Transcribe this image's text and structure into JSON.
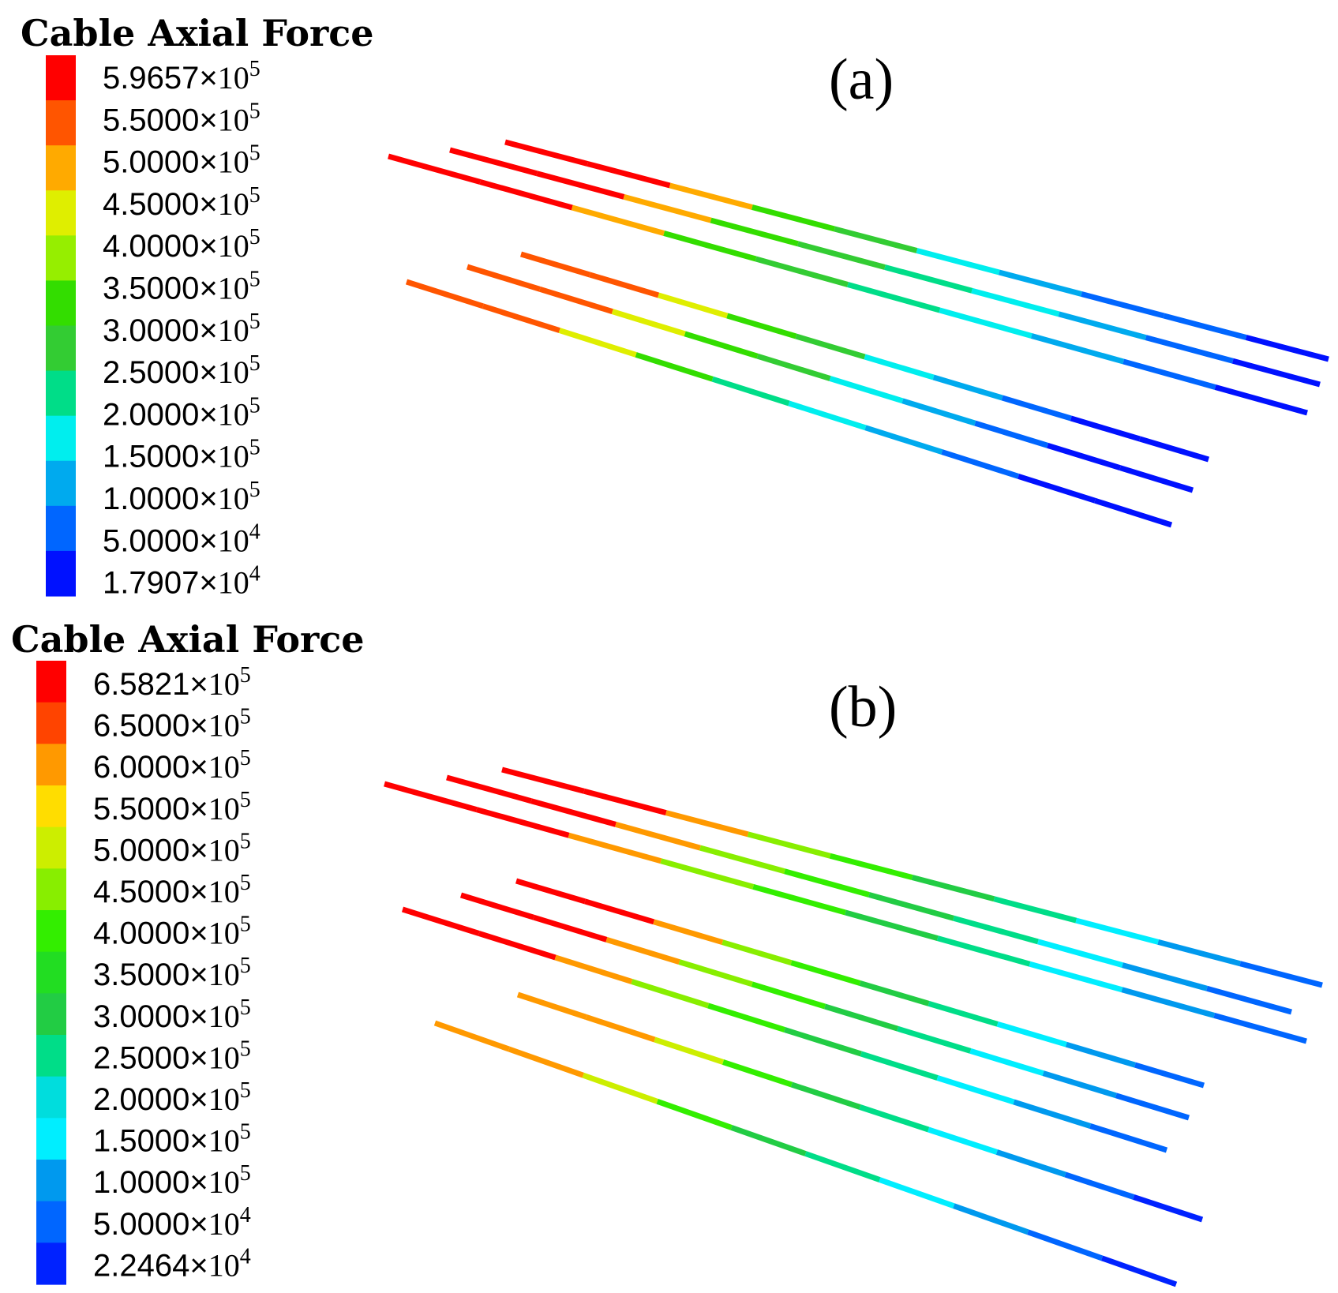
{
  "panels": [
    {
      "id": "a",
      "label": "(a)",
      "legend": {
        "title": "Cable Axial Force",
        "colors": [
          "#ff0000",
          "#ff5500",
          "#ffaa00",
          "#dfee00",
          "#96ee00",
          "#33dd00",
          "#33cc33",
          "#00dd88",
          "#00eeee",
          "#00aaee",
          "#0066ff",
          "#0011ff"
        ],
        "ticks": [
          {
            "mantissa": "5.9657",
            "times": "×",
            "base": "10",
            "exp": "5"
          },
          {
            "mantissa": "5.5000",
            "times": "×",
            "base": "10",
            "exp": "5"
          },
          {
            "mantissa": "5.0000",
            "times": "×",
            "base": "10",
            "exp": "5"
          },
          {
            "mantissa": "4.5000",
            "times": "×",
            "base": "10",
            "exp": "5"
          },
          {
            "mantissa": "4.0000",
            "times": "×",
            "base": "10",
            "exp": "5"
          },
          {
            "mantissa": "3.5000",
            "times": "×",
            "base": "10",
            "exp": "5"
          },
          {
            "mantissa": "3.0000",
            "times": "×",
            "base": "10",
            "exp": "5"
          },
          {
            "mantissa": "2.5000",
            "times": "×",
            "base": "10",
            "exp": "5"
          },
          {
            "mantissa": "2.0000",
            "times": "×",
            "base": "10",
            "exp": "5"
          },
          {
            "mantissa": "1.5000",
            "times": "×",
            "base": "10",
            "exp": "5"
          },
          {
            "mantissa": "1.0000",
            "times": "×",
            "base": "10",
            "exp": "5"
          },
          {
            "mantissa": "5.0000",
            "times": "×",
            "base": "10",
            "exp": "4"
          },
          {
            "mantissa": "1.7907",
            "times": "×",
            "base": "10",
            "exp": "4"
          }
        ]
      },
      "cable_segments": [
        [
          "#ff0000",
          "#ff0000",
          "#ffaa00",
          "#33dd00",
          "#33cc33",
          "#00eeee",
          "#00aaee",
          "#0066ff",
          "#0066ff",
          "#0011ff"
        ],
        [
          "#ff0000",
          "#ff0000",
          "#ffaa00",
          "#33dd00",
          "#33cc33",
          "#00dd88",
          "#00eeee",
          "#00aaee",
          "#0066ff",
          "#0011ff"
        ],
        [
          "#ff0000",
          "#ff0000",
          "#ffaa00",
          "#33dd00",
          "#33cc33",
          "#00dd88",
          "#00eeee",
          "#00aaee",
          "#0066ff",
          "#0011ff"
        ],
        [
          "#ff5500",
          "#ff5500",
          "#dfee00",
          "#33dd00",
          "#33cc33",
          "#00eeee",
          "#00aaee",
          "#0066ff",
          "#0011ff",
          "#0011ff"
        ],
        [
          "#ff5500",
          "#ff5500",
          "#dfee00",
          "#33dd00",
          "#33cc33",
          "#00eeee",
          "#00aaee",
          "#0066ff",
          "#0011ff",
          "#0011ff"
        ],
        [
          "#ff5500",
          "#ff5500",
          "#dfee00",
          "#33dd00",
          "#00dd88",
          "#00eeee",
          "#00aaee",
          "#0066ff",
          "#0011ff",
          "#0011ff"
        ]
      ]
    },
    {
      "id": "b",
      "label": "(b)",
      "legend": {
        "title": "Cable Axial Force",
        "colors": [
          "#ff0000",
          "#ff4400",
          "#ff9900",
          "#ffdd00",
          "#ccee00",
          "#88ee00",
          "#33ee00",
          "#22dd22",
          "#22cc44",
          "#00dd88",
          "#00dddd",
          "#00eeff",
          "#0099ee",
          "#0066ff",
          "#0022ff"
        ],
        "ticks": [
          {
            "mantissa": "6.5821",
            "times": "×",
            "base": "10",
            "exp": "5"
          },
          {
            "mantissa": "6.5000",
            "times": "×",
            "base": "10",
            "exp": "5"
          },
          {
            "mantissa": "6.0000",
            "times": "×",
            "base": "10",
            "exp": "5"
          },
          {
            "mantissa": "5.5000",
            "times": "×",
            "base": "10",
            "exp": "5"
          },
          {
            "mantissa": "5.0000",
            "times": "×",
            "base": "10",
            "exp": "5"
          },
          {
            "mantissa": "4.5000",
            "times": "×",
            "base": "10",
            "exp": "5"
          },
          {
            "mantissa": "4.0000",
            "times": "×",
            "base": "10",
            "exp": "5"
          },
          {
            "mantissa": "3.5000",
            "times": "×",
            "base": "10",
            "exp": "5"
          },
          {
            "mantissa": "3.0000",
            "times": "×",
            "base": "10",
            "exp": "5"
          },
          {
            "mantissa": "2.5000",
            "times": "×",
            "base": "10",
            "exp": "5"
          },
          {
            "mantissa": "2.0000",
            "times": "×",
            "base": "10",
            "exp": "5"
          },
          {
            "mantissa": "1.5000",
            "times": "×",
            "base": "10",
            "exp": "5"
          },
          {
            "mantissa": "1.0000",
            "times": "×",
            "base": "10",
            "exp": "5"
          },
          {
            "mantissa": "5.0000",
            "times": "×",
            "base": "10",
            "exp": "4"
          },
          {
            "mantissa": "2.2464",
            "times": "×",
            "base": "10",
            "exp": "4"
          }
        ]
      },
      "cable_segments": [
        [
          "#ff0000",
          "#ff0000",
          "#ff9900",
          "#88ee00",
          "#33ee00",
          "#22cc44",
          "#00dd88",
          "#00eeff",
          "#0099ee",
          "#0066ff"
        ],
        [
          "#ff0000",
          "#ff0000",
          "#ff9900",
          "#88ee00",
          "#33ee00",
          "#22cc44",
          "#00dd88",
          "#00eeff",
          "#0099ee",
          "#0066ff"
        ],
        [
          "#ff0000",
          "#ff0000",
          "#ff9900",
          "#88ee00",
          "#33ee00",
          "#22cc44",
          "#00dd88",
          "#00eeff",
          "#0099ee",
          "#0066ff"
        ],
        [
          "#ff0000",
          "#ff0000",
          "#ff9900",
          "#88ee00",
          "#33ee00",
          "#22cc44",
          "#00dd88",
          "#00eeff",
          "#0099ee",
          "#0066ff"
        ],
        [
          "#ff0000",
          "#ff0000",
          "#ff9900",
          "#88ee00",
          "#33ee00",
          "#22cc44",
          "#00dd88",
          "#00eeff",
          "#0099ee",
          "#0066ff"
        ],
        [
          "#ff0000",
          "#ff0000",
          "#ff9900",
          "#88ee00",
          "#33ee00",
          "#22cc44",
          "#00dd88",
          "#00eeff",
          "#0099ee",
          "#0066ff"
        ],
        [
          "#ff9900",
          "#ff9900",
          "#ccee00",
          "#33ee00",
          "#22cc44",
          "#00dd88",
          "#00eeff",
          "#0099ee",
          "#0066ff",
          "#0022ff"
        ],
        [
          "#ff9900",
          "#ff9900",
          "#ccee00",
          "#33ee00",
          "#22cc44",
          "#00dd88",
          "#00eeff",
          "#0099ee",
          "#0066ff",
          "#0022ff"
        ]
      ]
    }
  ]
}
